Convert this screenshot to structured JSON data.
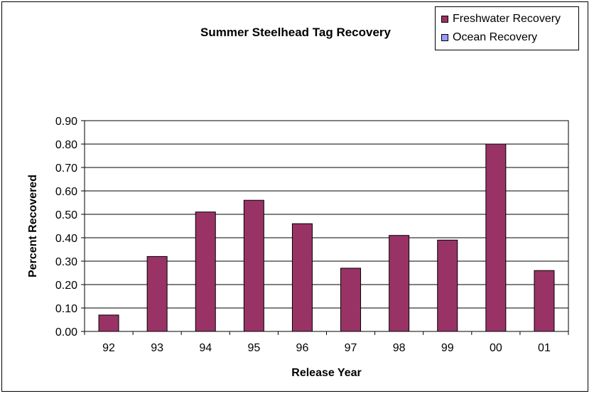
{
  "chart_data": {
    "type": "bar",
    "title": "Summer Steelhead Tag Recovery",
    "xlabel": "Release Year",
    "ylabel": "Percent Recovered",
    "categories": [
      "92",
      "93",
      "94",
      "95",
      "96",
      "97",
      "98",
      "99",
      "00",
      "01"
    ],
    "series": [
      {
        "name": "Freshwater Recovery",
        "color": "#993366",
        "values": [
          0.07,
          0.32,
          0.51,
          0.56,
          0.46,
          0.27,
          0.41,
          0.39,
          0.8,
          0.26
        ]
      },
      {
        "name": "Ocean Recovery",
        "color": "#9999FF",
        "values": [
          0,
          0,
          0,
          0,
          0,
          0,
          0,
          0,
          0,
          0
        ]
      }
    ],
    "ylim": [
      0,
      0.9
    ],
    "yticks": [
      "0.00",
      "0.10",
      "0.20",
      "0.30",
      "0.40",
      "0.50",
      "0.60",
      "0.70",
      "0.80",
      "0.90"
    ],
    "grid": true,
    "legend": "top-right"
  }
}
